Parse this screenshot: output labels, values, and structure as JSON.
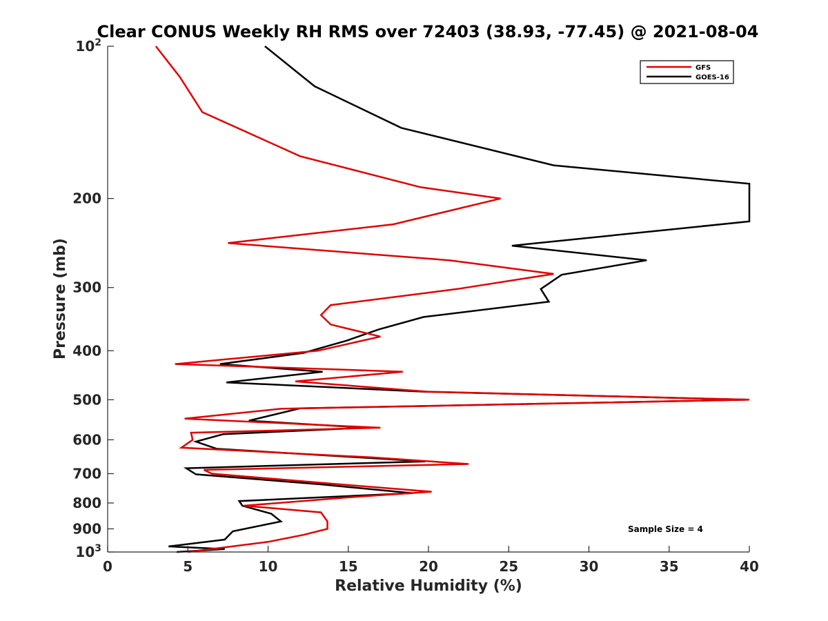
{
  "chart_data": {
    "type": "line",
    "title": "Clear CONUS Weekly RH RMS over 72403 (38.93, -77.45) @ 2021-08-04",
    "xlabel": "Relative Humidity (%)",
    "ylabel": "Pressure (mb)",
    "xlim": [
      0,
      40
    ],
    "ylim": [
      100,
      1000
    ],
    "y_scale": "log",
    "y_reversed": true,
    "x_ticks": [
      "0",
      "5",
      "10",
      "15",
      "20",
      "25",
      "30",
      "35",
      "40"
    ],
    "y_ticks": [
      {
        "value": 100,
        "base": "10",
        "exp": "2"
      },
      {
        "value": 200,
        "label": "200"
      },
      {
        "value": 300,
        "label": "300"
      },
      {
        "value": 400,
        "label": "400"
      },
      {
        "value": 500,
        "label": "500"
      },
      {
        "value": 600,
        "label": "600"
      },
      {
        "value": 700,
        "label": "700"
      },
      {
        "value": 800,
        "label": "800"
      },
      {
        "value": 900,
        "label": "900"
      },
      {
        "value": 1000,
        "base": "10",
        "exp": "3"
      }
    ],
    "legend_position": "top-right",
    "annotation": "Sample Size = 4",
    "series": [
      {
        "name": "GFS",
        "color": "#e00000",
        "points": [
          [
            3.0,
            100
          ],
          [
            4.5,
            115
          ],
          [
            5.9,
            135
          ],
          [
            12.0,
            165
          ],
          [
            19.5,
            190
          ],
          [
            24.5,
            200
          ],
          [
            17.8,
            225
          ],
          [
            7.5,
            245
          ],
          [
            21.3,
            265
          ],
          [
            27.8,
            282
          ],
          [
            21.8,
            302
          ],
          [
            13.9,
            325
          ],
          [
            13.3,
            340
          ],
          [
            13.9,
            355
          ],
          [
            17.0,
            375
          ],
          [
            13.1,
            400
          ],
          [
            4.2,
            425
          ],
          [
            18.4,
            440
          ],
          [
            11.7,
            460
          ],
          [
            20.0,
            482
          ],
          [
            40.0,
            500
          ],
          [
            10.8,
            521
          ],
          [
            4.8,
            545
          ],
          [
            17.0,
            568
          ],
          [
            5.2,
            581
          ],
          [
            5.3,
            600
          ],
          [
            4.6,
            622
          ],
          [
            16.5,
            650
          ],
          [
            22.5,
            670
          ],
          [
            6.0,
            688
          ],
          [
            6.5,
            700
          ],
          [
            14.5,
            735
          ],
          [
            20.2,
            760
          ],
          [
            15.0,
            780
          ],
          [
            8.5,
            810
          ],
          [
            13.3,
            835
          ],
          [
            13.7,
            870
          ],
          [
            13.7,
            900
          ],
          [
            12.2,
            925
          ],
          [
            10.0,
            955
          ],
          [
            5.0,
            1000
          ]
        ]
      },
      {
        "name": "GOES-16",
        "color": "#000000",
        "points": [
          [
            9.8,
            100
          ],
          [
            12.9,
            120
          ],
          [
            18.3,
            145
          ],
          [
            27.8,
            172
          ],
          [
            40.0,
            187
          ],
          [
            40.0,
            222
          ],
          [
            25.2,
            248
          ],
          [
            33.6,
            265
          ],
          [
            28.3,
            283
          ],
          [
            27.0,
            302
          ],
          [
            27.5,
            320
          ],
          [
            19.7,
            343
          ],
          [
            16.9,
            363
          ],
          [
            14.9,
            382
          ],
          [
            12.2,
            404
          ],
          [
            7.0,
            425
          ],
          [
            13.4,
            440
          ],
          [
            7.4,
            462
          ],
          [
            19.8,
            482
          ],
          [
            40.0,
            500
          ],
          [
            12.0,
            520
          ],
          [
            8.8,
            550
          ],
          [
            16.1,
            568
          ],
          [
            7.2,
            585
          ],
          [
            5.5,
            605
          ],
          [
            6.8,
            625
          ],
          [
            19.8,
            662
          ],
          [
            4.9,
            683
          ],
          [
            5.5,
            702
          ],
          [
            13.3,
            735
          ],
          [
            19.0,
            765
          ],
          [
            8.2,
            793
          ],
          [
            8.4,
            810
          ],
          [
            10.2,
            840
          ],
          [
            10.8,
            870
          ],
          [
            7.8,
            910
          ],
          [
            7.3,
            945
          ],
          [
            3.8,
            975
          ],
          [
            7.3,
            987
          ],
          [
            4.3,
            1000
          ]
        ]
      }
    ]
  }
}
